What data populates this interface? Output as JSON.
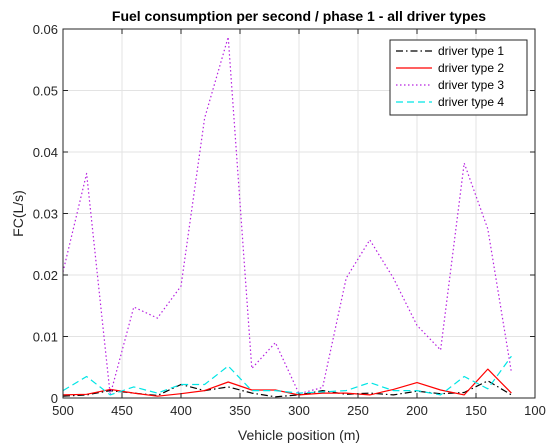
{
  "chart_data": {
    "type": "line",
    "title": "Fuel consumption per second / phase 1 - all driver types",
    "xlabel": "Vehicle position (m)",
    "ylabel": "FC(L/s)",
    "xlim": [
      500,
      100
    ],
    "ylim": [
      0,
      0.06
    ],
    "x_reversed": true,
    "grid": true,
    "legend_position": "top-right",
    "x_ticks": [
      500,
      450,
      400,
      350,
      300,
      250,
      200,
      150,
      100
    ],
    "y_ticks": [
      0,
      0.01,
      0.02,
      0.03,
      0.04,
      0.05,
      0.06
    ],
    "x_tick_labels": [
      "500",
      "450",
      "400",
      "350",
      "300",
      "250",
      "200",
      "150",
      "100"
    ],
    "y_tick_labels": [
      "0",
      "0.01",
      "0.02",
      "0.03",
      "0.04",
      "0.05",
      "0.06"
    ],
    "series": [
      {
        "name": "driver type 1",
        "color": "#000000",
        "dash": "dashdot",
        "x": [
          500,
          480,
          460,
          440,
          420,
          400,
          380,
          360,
          340,
          320,
          300,
          280,
          260,
          240,
          220,
          200,
          180,
          160,
          140,
          120
        ],
        "y": [
          0.0003,
          0.0005,
          0.0012,
          0.0008,
          0.0004,
          0.0022,
          0.0012,
          0.0018,
          0.0008,
          0.0002,
          0.0005,
          0.0012,
          0.0006,
          0.0008,
          0.0005,
          0.0011,
          0.0007,
          0.0009,
          0.0028,
          0.0005
        ]
      },
      {
        "name": "driver type 2",
        "color": "#ff0000",
        "dash": "solid",
        "x": [
          500,
          480,
          460,
          440,
          420,
          400,
          380,
          360,
          340,
          320,
          300,
          280,
          260,
          240,
          220,
          200,
          180,
          160,
          140,
          120
        ],
        "y": [
          0.0005,
          0.0006,
          0.0014,
          0.0008,
          0.0003,
          0.0007,
          0.0012,
          0.0026,
          0.0013,
          0.0013,
          0.0005,
          0.0008,
          0.0008,
          0.0005,
          0.0014,
          0.0025,
          0.0013,
          0.0005,
          0.0047,
          0.0008
        ]
      },
      {
        "name": "driver type 3",
        "color": "#b620e0",
        "dash": "dotted",
        "x": [
          500,
          480,
          460,
          440,
          420,
          400,
          380,
          360,
          340,
          320,
          300,
          280,
          260,
          240,
          220,
          200,
          180,
          160,
          140,
          120
        ],
        "y": [
          0.0205,
          0.0365,
          0.0005,
          0.0148,
          0.013,
          0.0182,
          0.0455,
          0.0587,
          0.0048,
          0.009,
          0.0007,
          0.0017,
          0.0195,
          0.0257,
          0.0195,
          0.0118,
          0.0078,
          0.0382,
          0.0275,
          0.0042
        ]
      },
      {
        "name": "driver type 4",
        "color": "#00e5e5",
        "dash": "dashed",
        "x": [
          500,
          480,
          460,
          440,
          420,
          400,
          380,
          360,
          340,
          320,
          300,
          280,
          260,
          240,
          220,
          200,
          180,
          160,
          140,
          120
        ],
        "y": [
          0.0012,
          0.0035,
          0.0005,
          0.0018,
          0.0008,
          0.0022,
          0.0022,
          0.0052,
          0.0012,
          0.0012,
          0.0008,
          0.001,
          0.0012,
          0.0025,
          0.0012,
          0.0012,
          0.0005,
          0.0035,
          0.0015,
          0.0068
        ]
      }
    ]
  }
}
